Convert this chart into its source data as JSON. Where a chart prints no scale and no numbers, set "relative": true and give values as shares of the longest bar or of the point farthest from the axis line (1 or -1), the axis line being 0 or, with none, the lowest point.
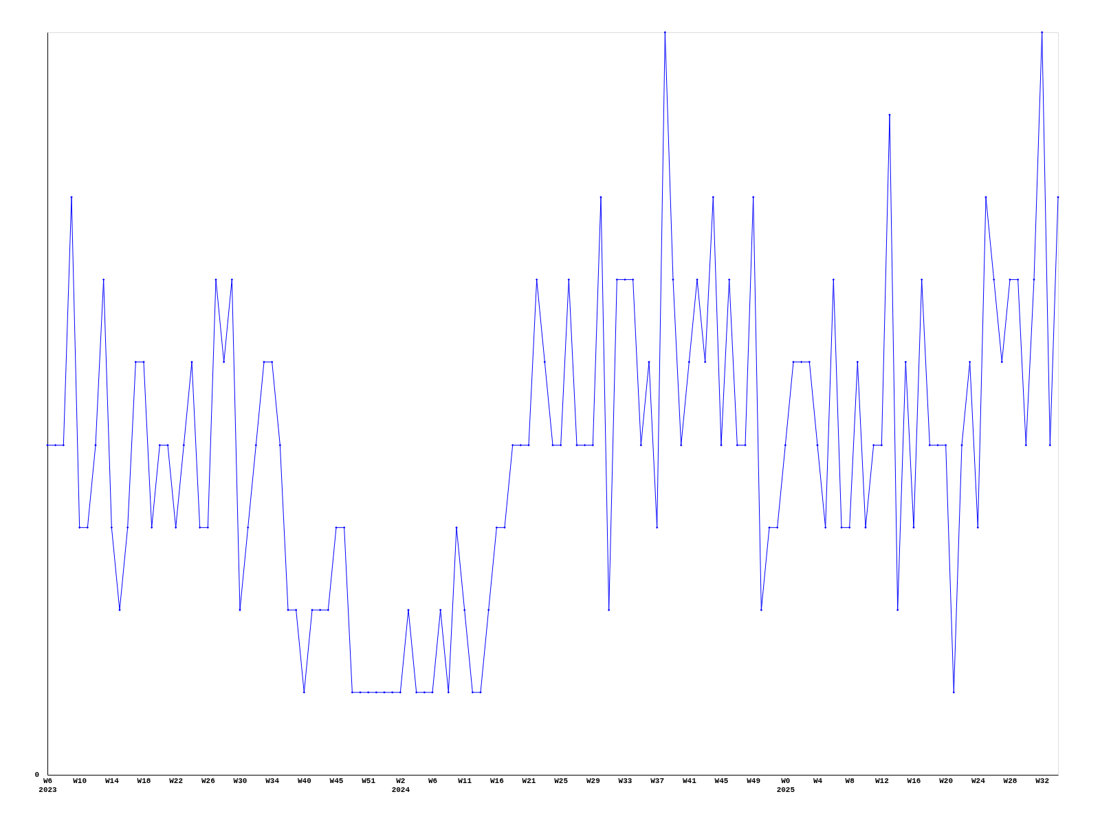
{
  "chart_data": {
    "type": "line",
    "relative": true,
    "marker": "diamond",
    "grid": false,
    "categories": [
      "W6 2023",
      null,
      null,
      null,
      "W10",
      null,
      null,
      null,
      "W14",
      null,
      null,
      null,
      "W18",
      null,
      null,
      null,
      "W22",
      null,
      null,
      null,
      "W26",
      null,
      null,
      null,
      "W30",
      null,
      null,
      null,
      "W34",
      null,
      null,
      null,
      "W40",
      null,
      null,
      null,
      "W45",
      null,
      null,
      null,
      "W51",
      null,
      null,
      null,
      "W2 2024",
      null,
      null,
      null,
      "W6",
      null,
      null,
      null,
      "W11",
      null,
      null,
      null,
      "W16",
      null,
      null,
      null,
      "W21",
      null,
      null,
      null,
      "W25",
      null,
      null,
      null,
      "W29",
      null,
      null,
      null,
      "W33",
      null,
      null,
      null,
      "W37",
      null,
      null,
      null,
      "W41",
      null,
      null,
      null,
      "W45",
      null,
      null,
      null,
      "W49",
      null,
      null,
      null,
      "W0 2025",
      null,
      null,
      null,
      "W4",
      null,
      null,
      null,
      "W8",
      null,
      null,
      null,
      "W12",
      null,
      null,
      null,
      "W16",
      null,
      null,
      null,
      "W20",
      null,
      null,
      null,
      "W24",
      null,
      null,
      null,
      "W28",
      null,
      null,
      null,
      "W32",
      null,
      null
    ],
    "series": [
      {
        "color": "#0000ff",
        "values": [
          0.444,
          0.444,
          0.444,
          0.778,
          0.333,
          0.333,
          0.444,
          0.667,
          0.333,
          0.222,
          0.333,
          0.556,
          0.556,
          0.333,
          0.444,
          0.444,
          0.333,
          0.444,
          0.556,
          0.333,
          0.333,
          0.667,
          0.556,
          0.667,
          0.222,
          0.333,
          0.444,
          0.556,
          0.556,
          0.444,
          0.222,
          0.222,
          0.111,
          0.222,
          0.222,
          0.222,
          0.333,
          0.333,
          0.111,
          0.111,
          0.111,
          0.111,
          0.111,
          0.111,
          0.111,
          0.222,
          0.111,
          0.111,
          0.111,
          0.222,
          0.111,
          0.333,
          0.222,
          0.111,
          0.111,
          0.222,
          0.333,
          0.333,
          0.444,
          0.444,
          0.444,
          0.667,
          0.556,
          0.444,
          0.444,
          0.667,
          0.444,
          0.444,
          0.444,
          0.778,
          0.222,
          0.667,
          0.667,
          0.667,
          0.444,
          0.556,
          0.333,
          1,
          0.667,
          0.444,
          0.556,
          0.667,
          0.556,
          0.778,
          0.444,
          0.667,
          0.444,
          0.444,
          0.778,
          0.222,
          0.333,
          0.333,
          0.444,
          0.556,
          0.556,
          0.556,
          0.444,
          0.333,
          0.667,
          0.333,
          0.333,
          0.556,
          0.333,
          0.444,
          0.444,
          0.889,
          0.222,
          0.556,
          0.333,
          0.667,
          0.444,
          0.444,
          0.444,
          0.111,
          0.444,
          0.556,
          0.333,
          0.778,
          0.667,
          0.556,
          0.667,
          0.667,
          0.444,
          0.667,
          1,
          0.444,
          0.778
        ]
      }
    ],
    "annotations": [
      "0"
    ]
  }
}
